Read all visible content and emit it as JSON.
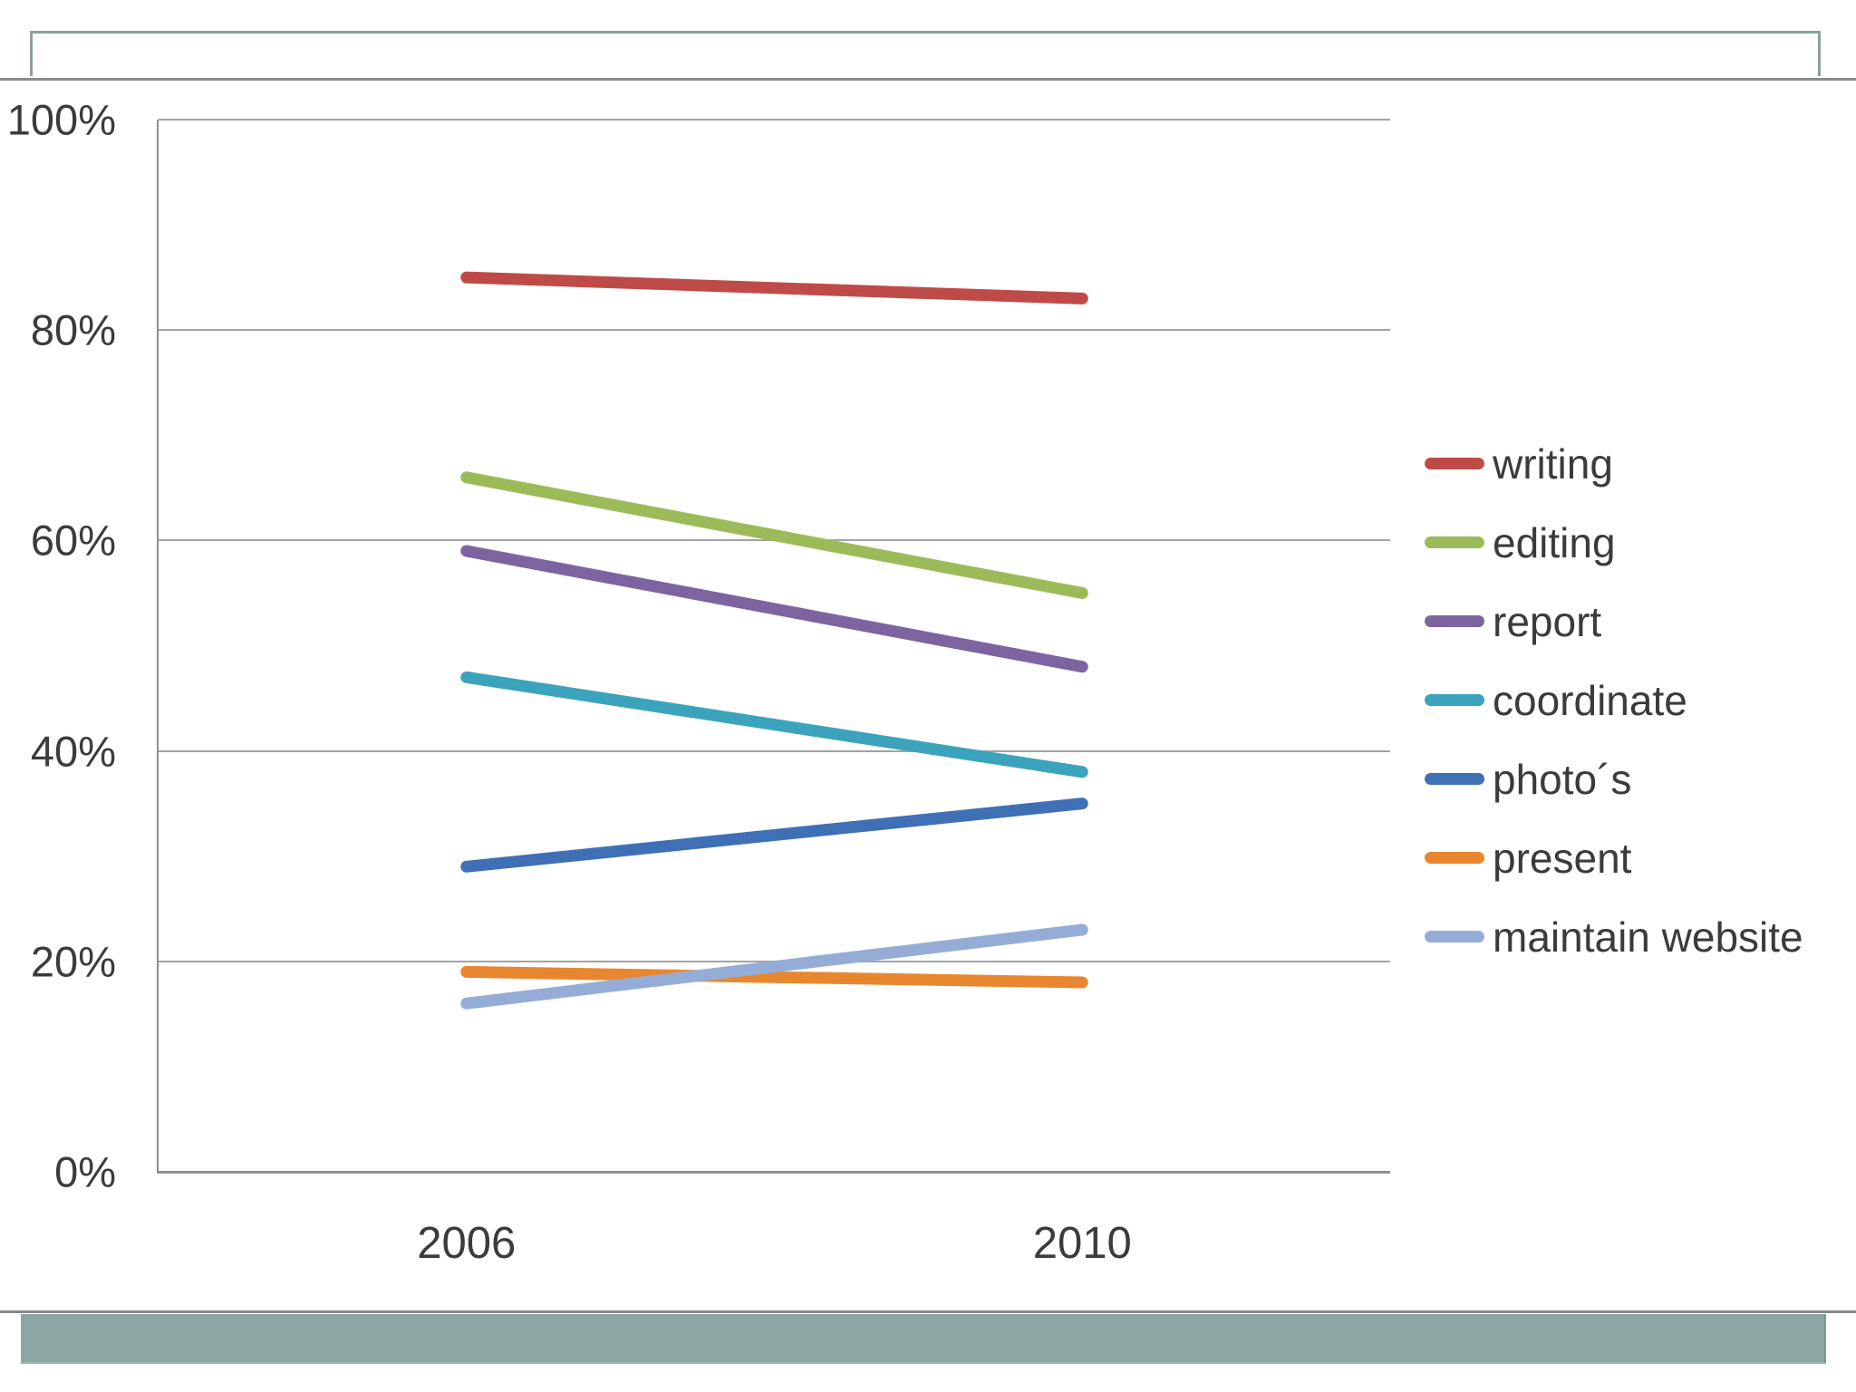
{
  "slide": {
    "title_placeholder_text": ""
  },
  "chart_data": {
    "type": "line",
    "title": "",
    "xlabel": "",
    "ylabel": "",
    "categories": [
      "2006",
      "2010"
    ],
    "series": [
      {
        "name": "writing",
        "color": "#be4b48",
        "values": [
          85,
          83
        ]
      },
      {
        "name": "editing",
        "color": "#9bbb59",
        "values": [
          66,
          55
        ]
      },
      {
        "name": "report",
        "color": "#7e63a1",
        "values": [
          59,
          48
        ]
      },
      {
        "name": "coordinate",
        "color": "#3ba3bc",
        "values": [
          47,
          38
        ]
      },
      {
        "name": "photo´s",
        "color": "#3f6fb5",
        "values": [
          29,
          35
        ]
      },
      {
        "name": "present",
        "color": "#e8872f",
        "values": [
          19,
          18
        ]
      },
      {
        "name": "maintain website",
        "color": "#95add6",
        "values": [
          16,
          23
        ]
      }
    ],
    "y_axis": {
      "min": 0,
      "max": 100,
      "step": 20,
      "tick_labels": [
        "0%",
        "20%",
        "40%",
        "60%",
        "80%",
        "100%"
      ],
      "format": "percent"
    },
    "x_axis": {
      "tick_labels": [
        "2006",
        "2010"
      ]
    },
    "grid": true,
    "legend_position": "right",
    "line_width": 13
  },
  "theme": {
    "accent_bar_color": "#8ba6a3",
    "rule_color": "#8a8a8a",
    "gridline_color": "#a3a3a3",
    "axis_text_color": "#3b3b3b"
  }
}
